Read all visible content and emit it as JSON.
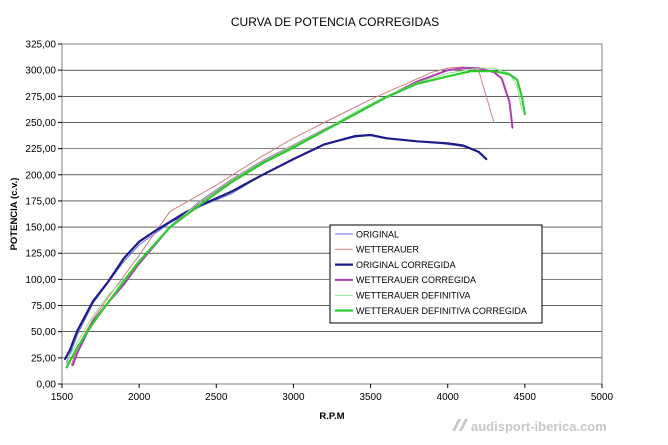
{
  "chart_data": {
    "type": "line",
    "title": "CURVA DE POTENCIA CORREGIDAS",
    "xlabel": "R.P.M",
    "ylabel": "POTENCIA (c.v.)",
    "xlim": [
      1500,
      5000
    ],
    "ylim": [
      0,
      325
    ],
    "x_ticks": [
      1500,
      2000,
      2500,
      3000,
      3500,
      4000,
      4500,
      5000
    ],
    "y_ticks": [
      0,
      25,
      50,
      75,
      100,
      125,
      150,
      175,
      200,
      225,
      250,
      275,
      300,
      325
    ],
    "y_tick_labels": [
      "0,00",
      "25,00",
      "50,00",
      "75,00",
      "100,00",
      "125,00",
      "150,00",
      "175,00",
      "200,00",
      "225,00",
      "250,00",
      "275,00",
      "300,00",
      "325,00"
    ],
    "grid": "horizontal",
    "legend_position": "inside-lower-right",
    "series": [
      {
        "name": "ORIGINAL",
        "color": "#6b6bdc",
        "width": 1,
        "x": [
          1530,
          1600,
          1700,
          1800,
          1900,
          2000,
          2200,
          2400,
          2600,
          2800,
          3000,
          3200,
          3400,
          3500,
          3700,
          3900,
          4100,
          4200,
          4250
        ],
        "y": [
          20,
          47,
          77,
          97,
          117,
          133,
          154,
          170,
          182,
          200,
          215,
          229,
          236,
          238,
          233,
          231,
          227,
          222,
          215
        ]
      },
      {
        "name": "WETTERAUER",
        "color": "#d08080",
        "width": 1,
        "x": [
          1560,
          1600,
          1700,
          1800,
          1900,
          2000,
          2200,
          2500,
          2800,
          3000,
          3200,
          3500,
          3700,
          3900,
          4000,
          4100,
          4200,
          4250,
          4300
        ],
        "y": [
          18,
          35,
          62,
          83,
          103,
          123,
          165,
          190,
          218,
          235,
          250,
          272,
          285,
          298,
          302,
          303,
          300,
          275,
          250
        ]
      },
      {
        "name": "ORIGINAL CORREGIDA",
        "color": "#1c1c8a",
        "width": 2.2,
        "x": [
          1520,
          1550,
          1600,
          1700,
          1800,
          1900,
          2000,
          2100,
          2200,
          2300,
          2400,
          2600,
          2800,
          3000,
          3200,
          3400,
          3500,
          3600,
          3800,
          4000,
          4100,
          4200,
          4250
        ],
        "y": [
          24,
          32,
          51,
          79,
          98,
          120,
          136,
          146,
          155,
          164,
          171,
          184,
          200,
          215,
          229,
          237,
          238,
          235,
          232,
          230,
          228,
          222,
          215
        ]
      },
      {
        "name": "WETTERAUER CORREGIDA",
        "color": "#b03cb0",
        "width": 2,
        "x": [
          1570,
          1600,
          1700,
          1800,
          1900,
          2000,
          2200,
          2400,
          2600,
          2800,
          3000,
          3200,
          3400,
          3600,
          3800,
          4000,
          4100,
          4200,
          4300,
          4350,
          4400,
          4420
        ],
        "y": [
          18,
          30,
          60,
          78,
          95,
          115,
          150,
          175,
          195,
          213,
          228,
          243,
          258,
          274,
          289,
          300,
          302,
          302,
          298,
          292,
          270,
          245
        ]
      },
      {
        "name": "WETTERAUER DEFINITIVA",
        "color": "#8ee08e",
        "width": 1,
        "x": [
          1530,
          1600,
          1700,
          1800,
          1900,
          2000,
          2200,
          2400,
          2600,
          2800,
          3000,
          3200,
          3400,
          3600,
          3800,
          4000,
          4200,
          4300,
          4400,
          4450,
          4480
        ],
        "y": [
          22,
          40,
          65,
          85,
          100,
          118,
          150,
          175,
          195,
          213,
          228,
          243,
          260,
          275,
          288,
          297,
          302,
          302,
          297,
          285,
          262
        ]
      },
      {
        "name": "WETTERAUER DEFINITIVA CORREGIDA",
        "color": "#2ecc2e",
        "width": 2.2,
        "x": [
          1530,
          1600,
          1700,
          1800,
          1900,
          2000,
          2200,
          2400,
          2600,
          2800,
          3000,
          3200,
          3400,
          3600,
          3800,
          4000,
          4150,
          4300,
          4400,
          4450,
          4480,
          4500
        ],
        "y": [
          16,
          35,
          58,
          78,
          98,
          117,
          150,
          172,
          193,
          211,
          226,
          242,
          258,
          274,
          287,
          294,
          299,
          299,
          296,
          291,
          275,
          258
        ]
      }
    ]
  },
  "watermark": {
    "text": "audisport-iberica.com"
  }
}
